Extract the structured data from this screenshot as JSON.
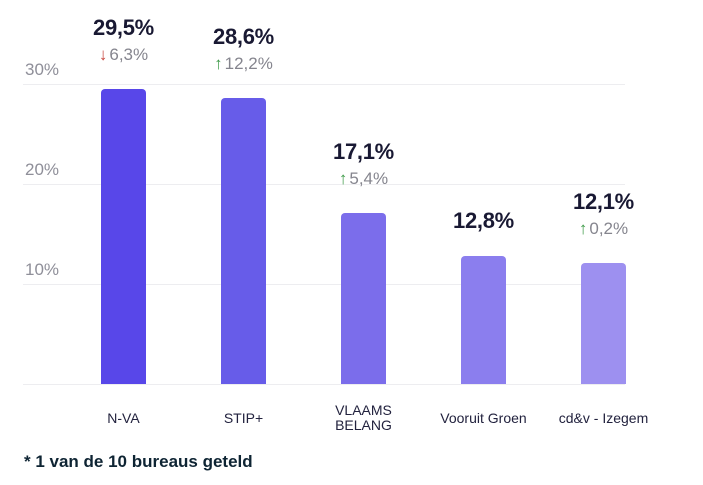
{
  "chart_data": {
    "type": "bar",
    "title": "",
    "xlabel": "",
    "ylabel": "",
    "footnote": "* 1 van de 10 bureaus geteld",
    "categories": [
      "N-VA",
      "STIP+",
      "VLAAMS BELANG",
      "Vooruit Groen",
      "cd&v - Izegem"
    ],
    "values": [
      29.5,
      28.6,
      17.1,
      12.8,
      12.1
    ],
    "value_labels": [
      "29,5%",
      "28,6%",
      "17,1%",
      "12,8%",
      "12,1%"
    ],
    "changes": [
      {
        "direction": "down",
        "label": "6,3%"
      },
      {
        "direction": "up",
        "label": "12,2%"
      },
      {
        "direction": "up",
        "label": "5,4%"
      },
      null,
      {
        "direction": "up",
        "label": "0,2%"
      }
    ],
    "bar_colors": [
      "#5847e9",
      "#675ce9",
      "#7b6deb",
      "#8b7eee",
      "#9d90f0"
    ],
    "y_ticks": [
      "30%",
      "20%",
      "10%"
    ],
    "y_tick_values": [
      30,
      20,
      10
    ],
    "ylim": [
      0,
      38
    ],
    "grid": true,
    "legend": "none"
  },
  "colors": {
    "background": "#ffffff",
    "up": "#3d9a47",
    "down": "#c9473f",
    "value_text": "#191933",
    "change_text": "#85858e",
    "axis_text": "#8f8f99",
    "category_text": "#22223e",
    "gridline": "#ededf0",
    "footnote_text": "#0e2433"
  },
  "icons": {
    "up_arrow": "↑",
    "down_arrow": "↓"
  }
}
